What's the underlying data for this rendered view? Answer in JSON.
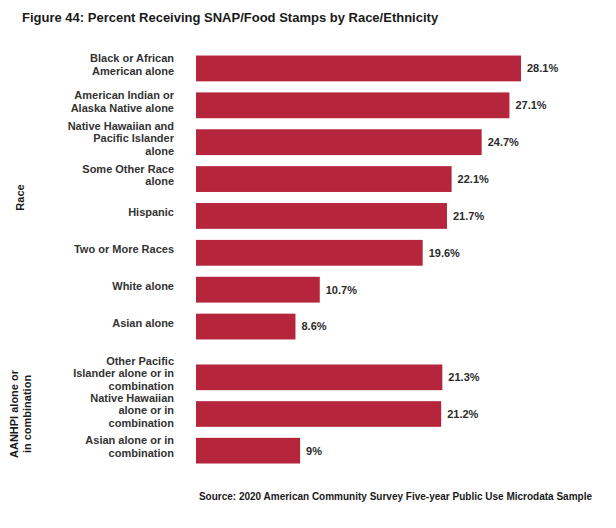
{
  "chart_data": {
    "type": "bar",
    "orientation": "horizontal",
    "title": "Figure 44: Percent Receiving SNAP/Food Stamps by Race/Ethnicity",
    "source": "Source: 2020 American Community Survey Five-year Public Use Microdata Sample",
    "color": "#b5253b",
    "data_labels": true,
    "tick_labels": false,
    "grid": false,
    "xlim": [
      0,
      28.1
    ],
    "groups": [
      {
        "label": "Race",
        "categories": [
          "Black or African American alone",
          "American Indian or Alaska Native alone",
          "Native Hawaiian and Pacific Islander alone",
          "Some Other Race alone",
          "Hispanic",
          "Two or More Races",
          "White alone",
          "Asian alone"
        ],
        "values": [
          28.1,
          27.1,
          24.7,
          22.1,
          21.7,
          19.6,
          10.7,
          8.6
        ],
        "value_labels": [
          "28.1%",
          "27.1%",
          "24.7%",
          "22.1%",
          "21.7%",
          "19.6%",
          "10.7%",
          "8.6%"
        ]
      },
      {
        "label": "AANHPI alone or in combination",
        "categories": [
          "Other Pacific Islander alone or in combination",
          "Native Hawaiian alone or in combination",
          "Asian alone or in combination"
        ],
        "values": [
          21.3,
          21.2,
          9
        ],
        "value_labels": [
          "21.3%",
          "21.2%",
          "9%"
        ]
      }
    ]
  }
}
